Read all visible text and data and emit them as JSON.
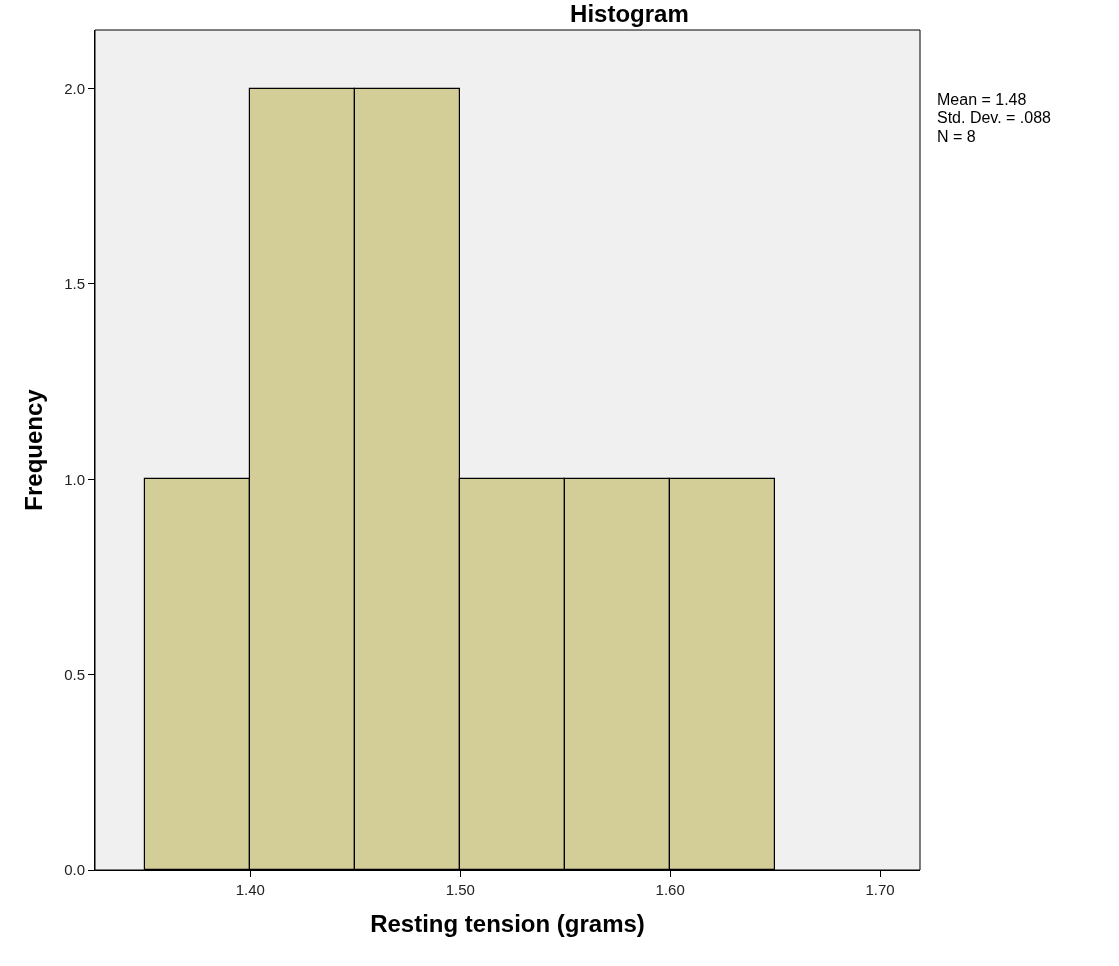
{
  "chart_data": {
    "type": "histogram",
    "title": "Histogram",
    "xlabel": "Resting tension (grams)",
    "ylabel": "Frequency",
    "bins": [
      1.35,
      1.4,
      1.45,
      1.5,
      1.55,
      1.6,
      1.65
    ],
    "values": [
      1,
      2,
      2,
      1,
      1,
      1
    ],
    "color": "#d3cd97",
    "xlim": [
      1.326,
      1.719
    ],
    "xticks": [
      {
        "value": 1.4,
        "label": "1.40"
      },
      {
        "value": 1.5,
        "label": "1.50"
      },
      {
        "value": 1.6,
        "label": "1.60"
      },
      {
        "value": 1.7,
        "label": "1.70"
      }
    ],
    "ylim": [
      0,
      2.15
    ],
    "yticks": [
      {
        "value": 0,
        "label": "0.0"
      },
      {
        "value": 0.5,
        "label": "0.5"
      },
      {
        "value": 1,
        "label": "1.0"
      },
      {
        "value": 1.5,
        "label": "1.5"
      },
      {
        "value": 2,
        "label": "2.0"
      }
    ],
    "annotations": [
      "Mean = 1.48",
      "Std. Dev. = .088",
      "N = 8"
    ],
    "grid": false
  }
}
